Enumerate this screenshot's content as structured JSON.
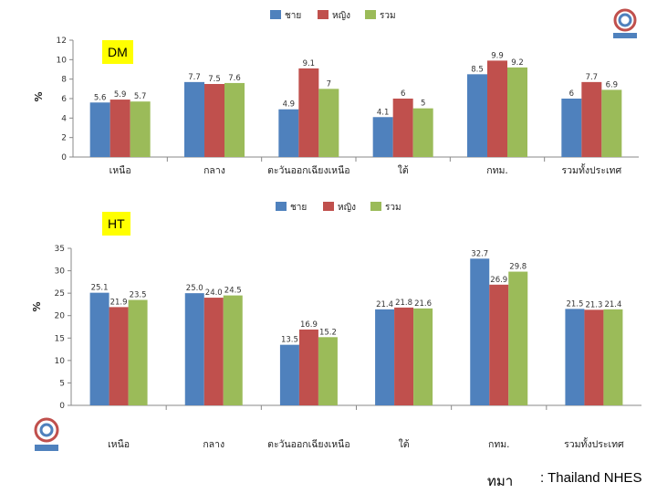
{
  "colors": {
    "male": "#4f81bd",
    "female": "#c0504d",
    "total": "#9bbb59",
    "tag_bg": "#ffff00"
  },
  "legend": [
    "ชาย",
    "หญิง",
    "รวม"
  ],
  "source": {
    "prefix": "ทมา",
    "text": ": Thailand NHES"
  },
  "chart_data": [
    {
      "type": "bar",
      "tag": "DM",
      "categories": [
        "เหนือ",
        "กลาง",
        "ตะวันออกเฉียงเหนือ",
        "ใต้",
        "กทม.",
        "รวมทั้งประเทศ"
      ],
      "ylabel": "%",
      "ylim": [
        0,
        12
      ],
      "yticks": [
        0,
        2,
        4,
        6,
        8,
        10,
        12
      ],
      "series": [
        {
          "name": "ชาย",
          "values": [
            5.6,
            7.7,
            4.9,
            4.1,
            8.5,
            6
          ],
          "labels": [
            "5.6",
            "7.7",
            "4.9",
            "4.1",
            "8.5",
            "6"
          ]
        },
        {
          "name": "หญิง",
          "values": [
            5.9,
            7.5,
            9.1,
            6,
            9.9,
            7.7
          ],
          "labels": [
            "5.9",
            "7.5",
            "9.1",
            "6",
            "9.9",
            "7.7"
          ]
        },
        {
          "name": "รวม",
          "values": [
            5.7,
            7.6,
            7,
            5,
            9.2,
            6.9
          ],
          "labels": [
            "5.7",
            "7.6",
            "7",
            "5",
            "9.2",
            "6.9"
          ]
        }
      ]
    },
    {
      "type": "bar",
      "tag": "HT",
      "categories": [
        "เหนือ",
        "กลาง",
        "ตะวันออกเฉียงเหนือ",
        "ใต้",
        "กทม.",
        "รวมทั้งประเทศ"
      ],
      "ylabel": "%",
      "ylim": [
        0,
        35
      ],
      "yticks": [
        0,
        5,
        10,
        15,
        20,
        25,
        30,
        35
      ],
      "series": [
        {
          "name": "ชาย",
          "values": [
            25.1,
            25.0,
            13.5,
            21.4,
            32.7,
            21.5
          ],
          "labels": [
            "25.1",
            "25.0",
            "13.5",
            "21.4",
            "32.7",
            "21.5"
          ]
        },
        {
          "name": "หญิง",
          "values": [
            21.9,
            24.0,
            16.9,
            21.8,
            26.9,
            21.3
          ],
          "labels": [
            "21.9",
            "24.0",
            "16.9",
            "21.8",
            "26.9",
            "21.3"
          ]
        },
        {
          "name": "รวม",
          "values": [
            23.5,
            24.5,
            15.2,
            21.6,
            29.8,
            21.4
          ],
          "labels": [
            "23.5",
            "24.5",
            "15.2",
            "21.6",
            "29.8",
            "21.4"
          ]
        }
      ]
    }
  ]
}
